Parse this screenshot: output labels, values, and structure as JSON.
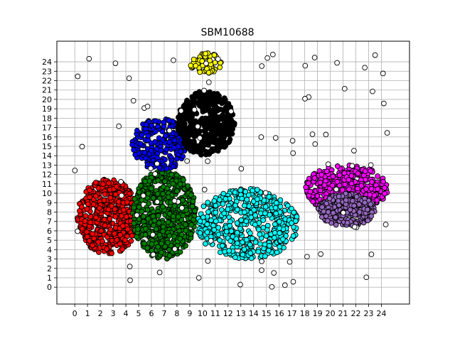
{
  "chart_data": {
    "type": "scatter",
    "title": "SBM10688",
    "xlabel": "",
    "ylabel": "",
    "xlim": [
      -1.4,
      26.2
    ],
    "ylim": [
      -1.8,
      26.2
    ],
    "xticks": [
      "0",
      "1",
      "2",
      "3",
      "4",
      "5",
      "6",
      "7",
      "8",
      "9",
      "10",
      "11",
      "12",
      "13",
      "14",
      "15",
      "16",
      "17",
      "18",
      "19",
      "20",
      "21",
      "22",
      "23",
      "24"
    ],
    "yticks": [
      "0",
      "1",
      "2",
      "3",
      "4",
      "5",
      "6",
      "7",
      "8",
      "9",
      "10",
      "11",
      "12",
      "13",
      "14",
      "15",
      "16",
      "17",
      "18",
      "19",
      "20",
      "21",
      "22",
      "23",
      "24"
    ],
    "grid": true,
    "legend": "none",
    "marker_edge_color": "#000000",
    "clusters": [
      {
        "color": "#ff0000",
        "region": "left lobe",
        "x_range": [
          0.2,
          5.0
        ],
        "y_range": [
          3.5,
          11.5
        ],
        "points": 520
      },
      {
        "color": "#008000",
        "region": "center-left",
        "x_range": [
          4.5,
          9.5
        ],
        "y_range": [
          3.0,
          12.5
        ],
        "points": 600
      },
      {
        "color": "#00ffff",
        "region": "center bridge",
        "x_range": [
          9.5,
          17.5
        ],
        "y_range": [
          3.0,
          10.5
        ],
        "points": 520
      },
      {
        "color": "#0000ff",
        "region": "upper-left arm",
        "x_range": [
          4.5,
          9.0
        ],
        "y_range": [
          12.5,
          18.0
        ],
        "points": 240
      },
      {
        "color": "#000000",
        "region": "upper center",
        "x_range": [
          8.0,
          12.5
        ],
        "y_range": [
          14.0,
          21.0
        ],
        "points": 460
      },
      {
        "color": "#ffff00",
        "region": "top",
        "x_range": [
          9.0,
          11.5
        ],
        "y_range": [
          22.8,
          25.0
        ],
        "points": 60
      },
      {
        "color": "#ff00ff",
        "region": "right lobe",
        "x_range": [
          18.0,
          24.5
        ],
        "y_range": [
          8.0,
          13.0
        ],
        "points": 420
      },
      {
        "color": "#9467bd",
        "region": "right lobe core",
        "x_range": [
          19.0,
          23.5
        ],
        "y_range": [
          6.5,
          10.0
        ],
        "points": 280
      },
      {
        "color": "#ffffff",
        "region": "outliers",
        "x_range": [
          0.0,
          24.5
        ],
        "y_range": [
          0.0,
          25.0
        ],
        "points": 90
      }
    ]
  }
}
